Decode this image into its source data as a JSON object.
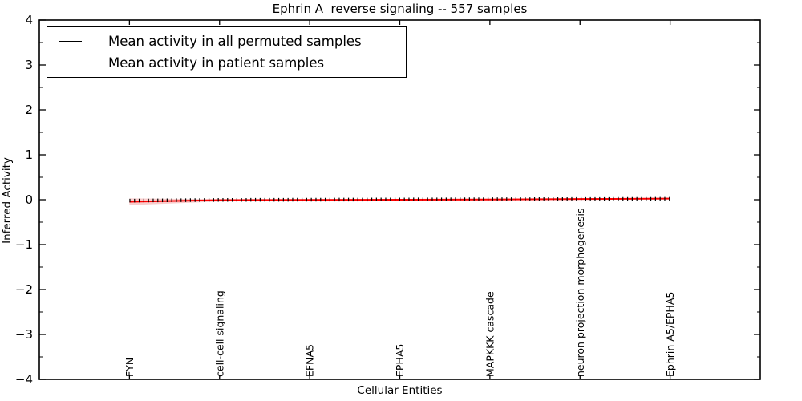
{
  "title": "Ephrin A  reverse signaling -- 557 samples",
  "legend": {
    "entries": [
      {
        "label": "Mean activity in all permuted samples",
        "color": "#000000"
      },
      {
        "label": "Mean activity in patient samples",
        "color": "#ff0000"
      }
    ],
    "position": "upper left"
  },
  "colors": {
    "background": "#ffffff",
    "axis": "#000000",
    "patient_line": "#ff0000",
    "permuted_line": "#000000",
    "confidence_band": "#f08080"
  },
  "chart_data": {
    "type": "line",
    "title": "Ephrin A  reverse signaling -- 557 samples",
    "xlabel": "Cellular Entities",
    "ylabel": "Inferred Activity",
    "ylim": [
      -4,
      4
    ],
    "ytick_values": [
      4,
      3,
      2,
      1,
      0,
      -1,
      -2,
      -3,
      -4
    ],
    "ytick_labels": [
      "4",
      "3",
      "2",
      "1",
      "0",
      "−1",
      "−2",
      "−3",
      "−4"
    ],
    "minor_tick_step": 0.5,
    "grid": false,
    "categories": [
      "FYN",
      "cell-cell signaling",
      "EFNA5",
      "EPHA5",
      "MAPKKK cascade",
      "neuron projection morphogenesis",
      "Ephrin A5/EPHA5"
    ],
    "series": [
      {
        "name": "Mean activity in all permuted samples",
        "color": "#000000",
        "style": "plus-markers",
        "values": [
          -0.02,
          -0.005,
          0.0,
          0.005,
          0.01,
          0.015,
          0.02
        ]
      },
      {
        "name": "Mean activity in patient samples",
        "color": "#ff0000",
        "style": "solid",
        "values": [
          -0.045,
          -0.01,
          -0.005,
          0.0,
          0.005,
          0.015,
          0.025
        ]
      }
    ],
    "band": {
      "upper": [
        0.03,
        0.01,
        0.01,
        0.01,
        0.02,
        0.03,
        0.04
      ],
      "lower": [
        -0.12,
        -0.04,
        -0.02,
        -0.01,
        -0.005,
        0.0,
        0.01
      ],
      "color": "#f08080",
      "opacity": 0.4
    }
  }
}
